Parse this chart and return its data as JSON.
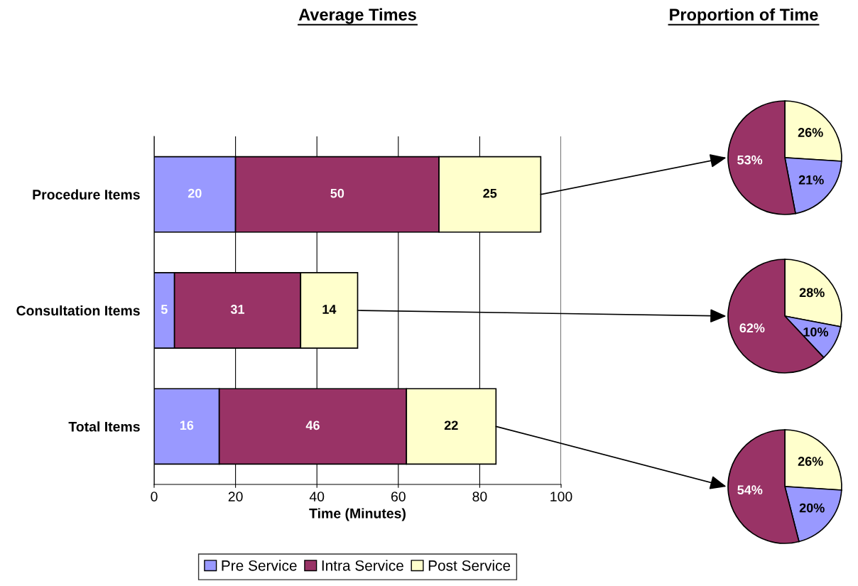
{
  "chart_data": [
    {
      "type": "bar",
      "orientation": "horizontal",
      "stacked": true,
      "title": "Average Times",
      "xlabel": "Time (Minutes)",
      "categories": [
        "Procedure Items",
        "Consultation Items",
        "Total Items"
      ],
      "series": [
        {
          "name": "Pre Service",
          "color": "#9999ff",
          "values": [
            20,
            5,
            16
          ]
        },
        {
          "name": "Intra Service",
          "color": "#993366",
          "values": [
            50,
            31,
            46
          ]
        },
        {
          "name": "Post Service",
          "color": "#ffffcc",
          "values": [
            25,
            14,
            22
          ]
        }
      ],
      "xlim": [
        0,
        100
      ],
      "xticks": [
        0,
        20,
        40,
        60,
        80,
        100
      ],
      "grid": "x",
      "legend": "bottom",
      "data_labels": true
    },
    {
      "type": "pie",
      "title": "Proportion of Time",
      "categories": [
        null,
        null,
        null
      ],
      "values": [
        26,
        21,
        53
      ],
      "value_labels": [
        "26%",
        "21%",
        "53%"
      ],
      "colors": [
        "#ffffcc",
        "#9999ff",
        "#993366"
      ]
    },
    {
      "type": "pie",
      "categories": [
        null,
        null,
        null
      ],
      "values": [
        28,
        10,
        62
      ],
      "value_labels": [
        "28%",
        "10%",
        "62%"
      ],
      "colors": [
        "#ffffcc",
        "#9999ff",
        "#993366"
      ]
    },
    {
      "type": "pie",
      "categories": [
        null,
        null,
        null
      ],
      "values": [
        26,
        20,
        54
      ],
      "value_labels": [
        "26%",
        "20%",
        "54%"
      ],
      "colors": [
        "#ffffcc",
        "#9999ff",
        "#993366"
      ]
    }
  ]
}
